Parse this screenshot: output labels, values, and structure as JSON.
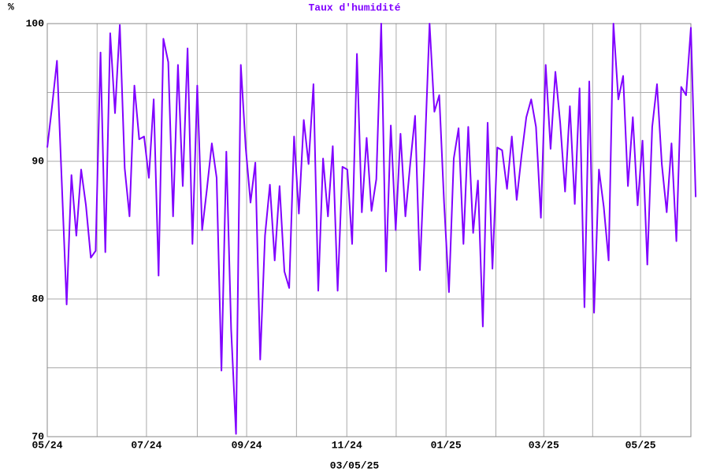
{
  "chart_data": {
    "type": "line",
    "title": "Taux d'humidité",
    "y_label": "%",
    "x_label": "03/05/25",
    "series": [
      {
        "name": "Taux d'humidité",
        "color": "#8000ff",
        "values": [
          91,
          94,
          97.3,
          88.5,
          79.6,
          89,
          84.6,
          89.4,
          86.8,
          83,
          83.5,
          97.9,
          83.4,
          99.3,
          93.5,
          99.9,
          89.5,
          86,
          95.5,
          91.6,
          91.8,
          88.8,
          94.5,
          81.7,
          98.9,
          97.2,
          86,
          97,
          88.2,
          98.2,
          84,
          95.5,
          85,
          88,
          91.3,
          88.8,
          74.8,
          90.7,
          77.8,
          70.2,
          97,
          91,
          87,
          89.9,
          75.6,
          84.6,
          88.3,
          82.8,
          88.2,
          82,
          80.8,
          91.8,
          86.2,
          93,
          89.8,
          95.6,
          80.6,
          90.2,
          86,
          91.1,
          80.6,
          89.6,
          89.4,
          84,
          97.8,
          86.3,
          91.7,
          86.4,
          88.7,
          100,
          82,
          92.6,
          85,
          92,
          86,
          89.8,
          93.3,
          82.1,
          90.5,
          100,
          93.6,
          94.8,
          87,
          80.5,
          90.2,
          92.4,
          84,
          92.5,
          84.8,
          88.6,
          78,
          92.8,
          82.2,
          91,
          90.8,
          88,
          91.8,
          87.2,
          90.4,
          93.2,
          94.5,
          92.5,
          85.9,
          97,
          90.9,
          96.5,
          92.8,
          87.8,
          94,
          86.9,
          95.3,
          79.4,
          95.8,
          79,
          89.4,
          86.7,
          82.8,
          100,
          94.5,
          96.2,
          88.2,
          93.2,
          86.8,
          91.5,
          82.5,
          92.5,
          95.6,
          89.8,
          86.3,
          91.3,
          84.2,
          95.4,
          94.8,
          99.7,
          87.4
        ]
      }
    ],
    "xlim": [
      0,
      133
    ],
    "xticks": [
      {
        "value": 0,
        "label": "05/24"
      },
      {
        "value": 20.5,
        "label": "07/24"
      },
      {
        "value": 41.2,
        "label": "09/24"
      },
      {
        "value": 61.9,
        "label": "11/24"
      },
      {
        "value": 82.4,
        "label": "01/25"
      },
      {
        "value": 102.6,
        "label": "03/25"
      },
      {
        "value": 122.6,
        "label": "05/25"
      }
    ],
    "xminor": [
      10.3,
      31,
      51.5,
      72.1,
      92.7,
      112.7,
      133
    ],
    "ylim": [
      70,
      100
    ],
    "yticks": [
      70,
      80,
      90,
      100
    ],
    "yminor": [
      75,
      85,
      95
    ],
    "grid": true
  }
}
